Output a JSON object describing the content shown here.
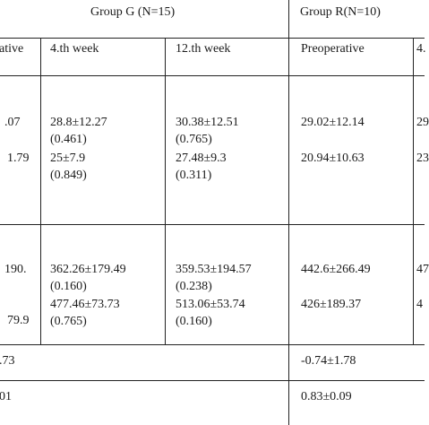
{
  "header": {
    "group_g": "Group G (N=15)",
    "group_r": "Group R(N=10)"
  },
  "columns": {
    "col0": "ative",
    "col1": "4.th week",
    "col2": "12.th week",
    "col3": "Preoperative",
    "col4": "4."
  },
  "block1": {
    "c0_line1": ".07",
    "c0_line2": "1.79",
    "c1_line1": "28.8±12.27",
    "c1_line2": "(0.461)",
    "c1_line3": "25±7.9",
    "c1_line4": "(0.849)",
    "c2_line1": "30.38±12.51",
    "c2_line2": "(0.765)",
    "c2_line3": "27.48±9.3",
    "c2_line4": "(0.311)",
    "c3_line1": "29.02±12.14",
    "c3_line2": "20.94±10.63",
    "c4_line1": "29",
    "c4_line2": "23"
  },
  "block2": {
    "c0_line1": "190.",
    "c0_line2": "79.9",
    "c1_line1": "362.26±179.49",
    "c1_line2": "(0.160)",
    "c1_line3": "477.46±73.73",
    "c1_line4": "(0.765)",
    "c2_line1": "359.53±194.57",
    "c2_line2": "(0.238)",
    "c2_line3": "513.06±53.74",
    "c2_line4": "(0.160)",
    "c3_line1": "442.6±266.49",
    "c3_line2": "426±189.37",
    "c4_line1": "47",
    "c4_line2": "4"
  },
  "row3": {
    "left": ".73",
    "right": "-0.74±1.78"
  },
  "row4": {
    "left": "01",
    "right": "0.83±0.09"
  }
}
